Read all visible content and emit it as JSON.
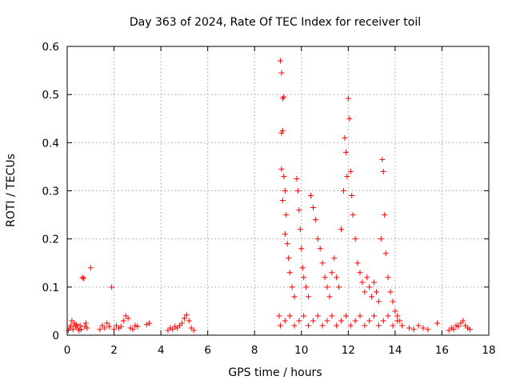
{
  "chart_data": {
    "type": "scatter",
    "title": "Day 363 of 2024, Rate Of TEC Index for receiver toil",
    "xlabel": "GPS time / hours",
    "ylabel": "ROTI / TECUs",
    "xlim": [
      0,
      18
    ],
    "ylim": [
      0,
      0.6
    ],
    "xticks": [
      0,
      2,
      4,
      6,
      8,
      10,
      12,
      14,
      16,
      18
    ],
    "xtick_labels": [
      "0",
      "2",
      "4",
      "6",
      "8",
      "10",
      "12",
      "14",
      "16",
      "18"
    ],
    "yticks": [
      0,
      0.1,
      0.2,
      0.3,
      0.4,
      0.5,
      0.6
    ],
    "ytick_labels": [
      "0",
      "0.1",
      "0.2",
      "0.3",
      "0.4",
      "0.5",
      "0.6"
    ],
    "grid": true,
    "marker": "+",
    "color": "#ff0000",
    "series": [
      {
        "name": "ROTI",
        "points": [
          [
            0.05,
            0.01
          ],
          [
            0.1,
            0.015
          ],
          [
            0.15,
            0.02
          ],
          [
            0.2,
            0.03
          ],
          [
            0.25,
            0.012
          ],
          [
            0.3,
            0.025
          ],
          [
            0.35,
            0.018
          ],
          [
            0.4,
            0.022
          ],
          [
            0.45,
            0.015
          ],
          [
            0.5,
            0.01
          ],
          [
            0.55,
            0.02
          ],
          [
            0.6,
            0.012
          ],
          [
            0.65,
            0.12
          ],
          [
            0.7,
            0.118
          ],
          [
            0.75,
            0.018
          ],
          [
            0.8,
            0.025
          ],
          [
            0.85,
            0.015
          ],
          [
            1.0,
            0.14
          ],
          [
            1.4,
            0.012
          ],
          [
            1.5,
            0.02
          ],
          [
            1.6,
            0.015
          ],
          [
            1.7,
            0.025
          ],
          [
            1.8,
            0.018
          ],
          [
            1.9,
            0.1
          ],
          [
            2.0,
            0.012
          ],
          [
            2.1,
            0.02
          ],
          [
            2.2,
            0.015
          ],
          [
            2.3,
            0.018
          ],
          [
            2.4,
            0.03
          ],
          [
            2.5,
            0.04
          ],
          [
            2.6,
            0.035
          ],
          [
            2.7,
            0.015
          ],
          [
            2.8,
            0.012
          ],
          [
            2.9,
            0.02
          ],
          [
            3.0,
            0.018
          ],
          [
            3.4,
            0.022
          ],
          [
            3.5,
            0.025
          ],
          [
            4.3,
            0.01
          ],
          [
            4.4,
            0.015
          ],
          [
            4.5,
            0.012
          ],
          [
            4.6,
            0.018
          ],
          [
            4.7,
            0.015
          ],
          [
            4.8,
            0.02
          ],
          [
            4.9,
            0.025
          ],
          [
            5.0,
            0.035
          ],
          [
            5.1,
            0.042
          ],
          [
            5.2,
            0.03
          ],
          [
            5.3,
            0.015
          ],
          [
            5.4,
            0.01
          ],
          [
            9.05,
            0.04
          ],
          [
            9.1,
            0.57
          ],
          [
            9.15,
            0.545
          ],
          [
            9.2,
            0.492
          ],
          [
            9.25,
            0.495
          ],
          [
            9.15,
            0.42
          ],
          [
            9.2,
            0.425
          ],
          [
            9.15,
            0.345
          ],
          [
            9.25,
            0.33
          ],
          [
            9.3,
            0.3
          ],
          [
            9.2,
            0.28
          ],
          [
            9.35,
            0.25
          ],
          [
            9.3,
            0.21
          ],
          [
            9.4,
            0.19
          ],
          [
            9.45,
            0.16
          ],
          [
            9.5,
            0.13
          ],
          [
            9.6,
            0.1
          ],
          [
            9.7,
            0.08
          ],
          [
            9.8,
            0.325
          ],
          [
            9.85,
            0.3
          ],
          [
            9.9,
            0.26
          ],
          [
            9.95,
            0.22
          ],
          [
            10.0,
            0.18
          ],
          [
            10.05,
            0.14
          ],
          [
            10.1,
            0.12
          ],
          [
            10.2,
            0.1
          ],
          [
            10.3,
            0.08
          ],
          [
            10.4,
            0.29
          ],
          [
            10.5,
            0.265
          ],
          [
            10.6,
            0.24
          ],
          [
            10.7,
            0.2
          ],
          [
            10.8,
            0.18
          ],
          [
            10.9,
            0.15
          ],
          [
            11.0,
            0.12
          ],
          [
            11.1,
            0.1
          ],
          [
            11.2,
            0.08
          ],
          [
            11.3,
            0.13
          ],
          [
            11.4,
            0.16
          ],
          [
            11.5,
            0.12
          ],
          [
            11.6,
            0.1
          ],
          [
            11.7,
            0.22
          ],
          [
            11.8,
            0.3
          ],
          [
            11.85,
            0.41
          ],
          [
            11.9,
            0.38
          ],
          [
            11.95,
            0.33
          ],
          [
            12.0,
            0.492
          ],
          [
            12.05,
            0.45
          ],
          [
            12.1,
            0.34
          ],
          [
            12.15,
            0.29
          ],
          [
            12.2,
            0.25
          ],
          [
            12.3,
            0.2
          ],
          [
            12.4,
            0.15
          ],
          [
            12.5,
            0.13
          ],
          [
            12.6,
            0.11
          ],
          [
            12.7,
            0.09
          ],
          [
            12.8,
            0.12
          ],
          [
            12.9,
            0.1
          ],
          [
            13.0,
            0.08
          ],
          [
            13.1,
            0.11
          ],
          [
            13.2,
            0.09
          ],
          [
            13.3,
            0.07
          ],
          [
            13.4,
            0.2
          ],
          [
            13.45,
            0.365
          ],
          [
            13.5,
            0.34
          ],
          [
            13.55,
            0.25
          ],
          [
            13.6,
            0.17
          ],
          [
            13.7,
            0.12
          ],
          [
            13.8,
            0.09
          ],
          [
            13.9,
            0.07
          ],
          [
            14.0,
            0.05
          ],
          [
            14.1,
            0.04
          ],
          [
            14.2,
            0.03
          ],
          [
            9.1,
            0.02
          ],
          [
            9.3,
            0.03
          ],
          [
            9.5,
            0.04
          ],
          [
            9.7,
            0.02
          ],
          [
            9.9,
            0.03
          ],
          [
            10.1,
            0.04
          ],
          [
            10.3,
            0.02
          ],
          [
            10.5,
            0.03
          ],
          [
            10.7,
            0.04
          ],
          [
            10.9,
            0.02
          ],
          [
            11.1,
            0.03
          ],
          [
            11.3,
            0.04
          ],
          [
            11.5,
            0.02
          ],
          [
            11.7,
            0.03
          ],
          [
            11.9,
            0.04
          ],
          [
            12.1,
            0.02
          ],
          [
            12.3,
            0.03
          ],
          [
            12.5,
            0.04
          ],
          [
            12.7,
            0.02
          ],
          [
            12.9,
            0.03
          ],
          [
            13.1,
            0.04
          ],
          [
            13.3,
            0.02
          ],
          [
            13.5,
            0.03
          ],
          [
            13.7,
            0.04
          ],
          [
            13.9,
            0.02
          ],
          [
            14.1,
            0.03
          ],
          [
            14.3,
            0.02
          ],
          [
            14.6,
            0.015
          ],
          [
            14.8,
            0.012
          ],
          [
            15.0,
            0.02
          ],
          [
            15.2,
            0.015
          ],
          [
            15.4,
            0.012
          ],
          [
            15.8,
            0.025
          ],
          [
            16.3,
            0.01
          ],
          [
            16.4,
            0.015
          ],
          [
            16.5,
            0.012
          ],
          [
            16.6,
            0.02
          ],
          [
            16.7,
            0.018
          ],
          [
            16.8,
            0.025
          ],
          [
            16.9,
            0.03
          ],
          [
            17.0,
            0.02
          ],
          [
            17.1,
            0.015
          ],
          [
            17.2,
            0.012
          ]
        ]
      }
    ]
  }
}
